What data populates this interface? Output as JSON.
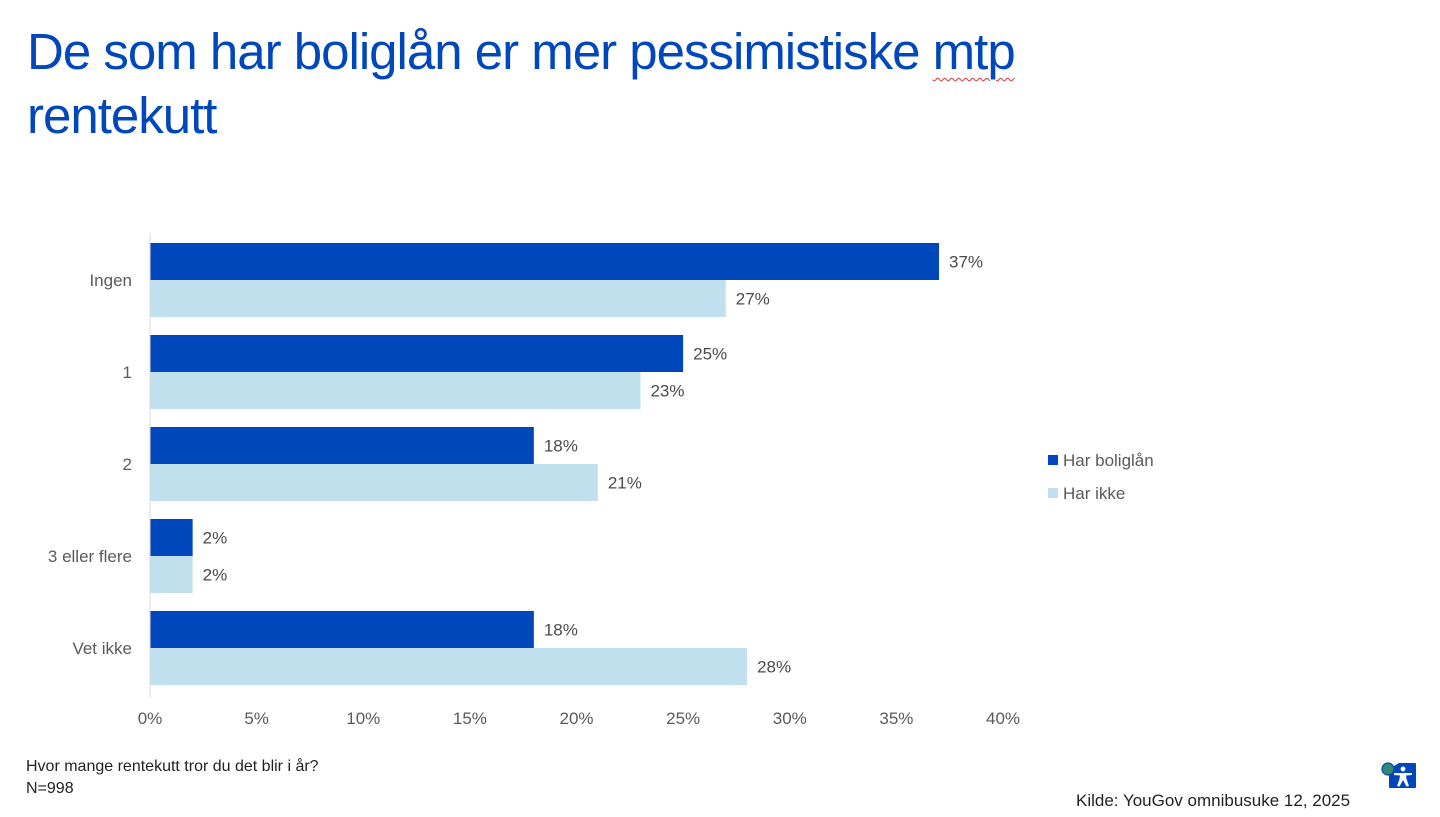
{
  "title_part1": "De som har boliglån er mer pessimistiske ",
  "title_part2": "mtp",
  "title_part3": " rentekutt",
  "note": {
    "question": "Hvor mange rentekutt tror du det blir i år?",
    "n": "N=998"
  },
  "source": "Kilde: YouGov omnibusuke 12, 2025",
  "colors": {
    "dark": "#0047bb",
    "light": "#bfe0ec",
    "title": "#0047bb"
  },
  "icons": {
    "accessibility": "accessibility-icon"
  },
  "chart_data": {
    "type": "bar",
    "orientation": "horizontal",
    "title": "De som har boliglån er mer pessimistiske mtp rentekutt",
    "categories": [
      "Ingen",
      "1",
      "2",
      "3 eller flere",
      "Vet ikke"
    ],
    "series": [
      {
        "name": "Har boliglån",
        "color": "#0047bb",
        "values": [
          37,
          25,
          18,
          2,
          18
        ],
        "labels": [
          "37%",
          "25%",
          "18%",
          "2%",
          "18%"
        ]
      },
      {
        "name": "Har ikke",
        "color": "#bfe0ec",
        "values": [
          27,
          23,
          21,
          2,
          28
        ],
        "labels": [
          "27%",
          "23%",
          "21%",
          "2%",
          "28%"
        ]
      }
    ],
    "xlim": [
      0,
      40
    ],
    "xticks": [
      0,
      5,
      10,
      15,
      20,
      25,
      30,
      35,
      40
    ],
    "xtick_labels": [
      "0%",
      "5%",
      "10%",
      "15%",
      "20%",
      "25%",
      "30%",
      "35%",
      "40%"
    ],
    "xlabel": "",
    "ylabel": "",
    "grid": false,
    "legend": "right"
  }
}
